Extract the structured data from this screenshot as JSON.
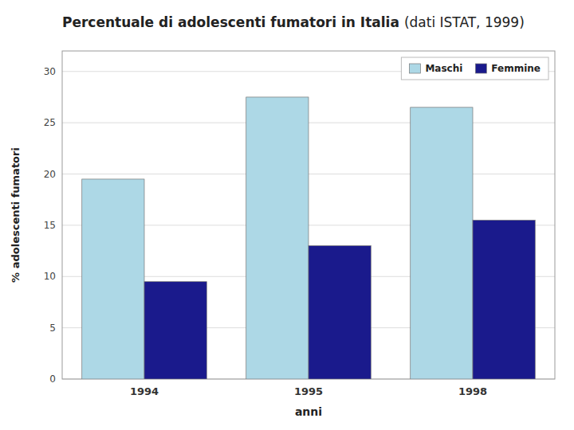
{
  "chart_data": {
    "type": "bar",
    "title": "Percentuale di adolescenti fumatori in Italia",
    "subtitle": "(dati ISTAT, 1999)",
    "x_label": "anni",
    "y_label": "% adolescenti fumatori",
    "categories": [
      "1994",
      "1995",
      "1998"
    ],
    "series": [
      {
        "name": "Maschi",
        "color": "#add8e6",
        "values": [
          19.5,
          27.5,
          26.5
        ]
      },
      {
        "name": "Femmine",
        "color": "#1a1a8c",
        "values": [
          9.5,
          13.0,
          15.5
        ]
      }
    ],
    "ylim": [
      0,
      32
    ],
    "yticks": [
      0,
      5,
      10,
      15,
      20,
      25,
      30
    ],
    "grid": true,
    "legend": "upper right"
  }
}
